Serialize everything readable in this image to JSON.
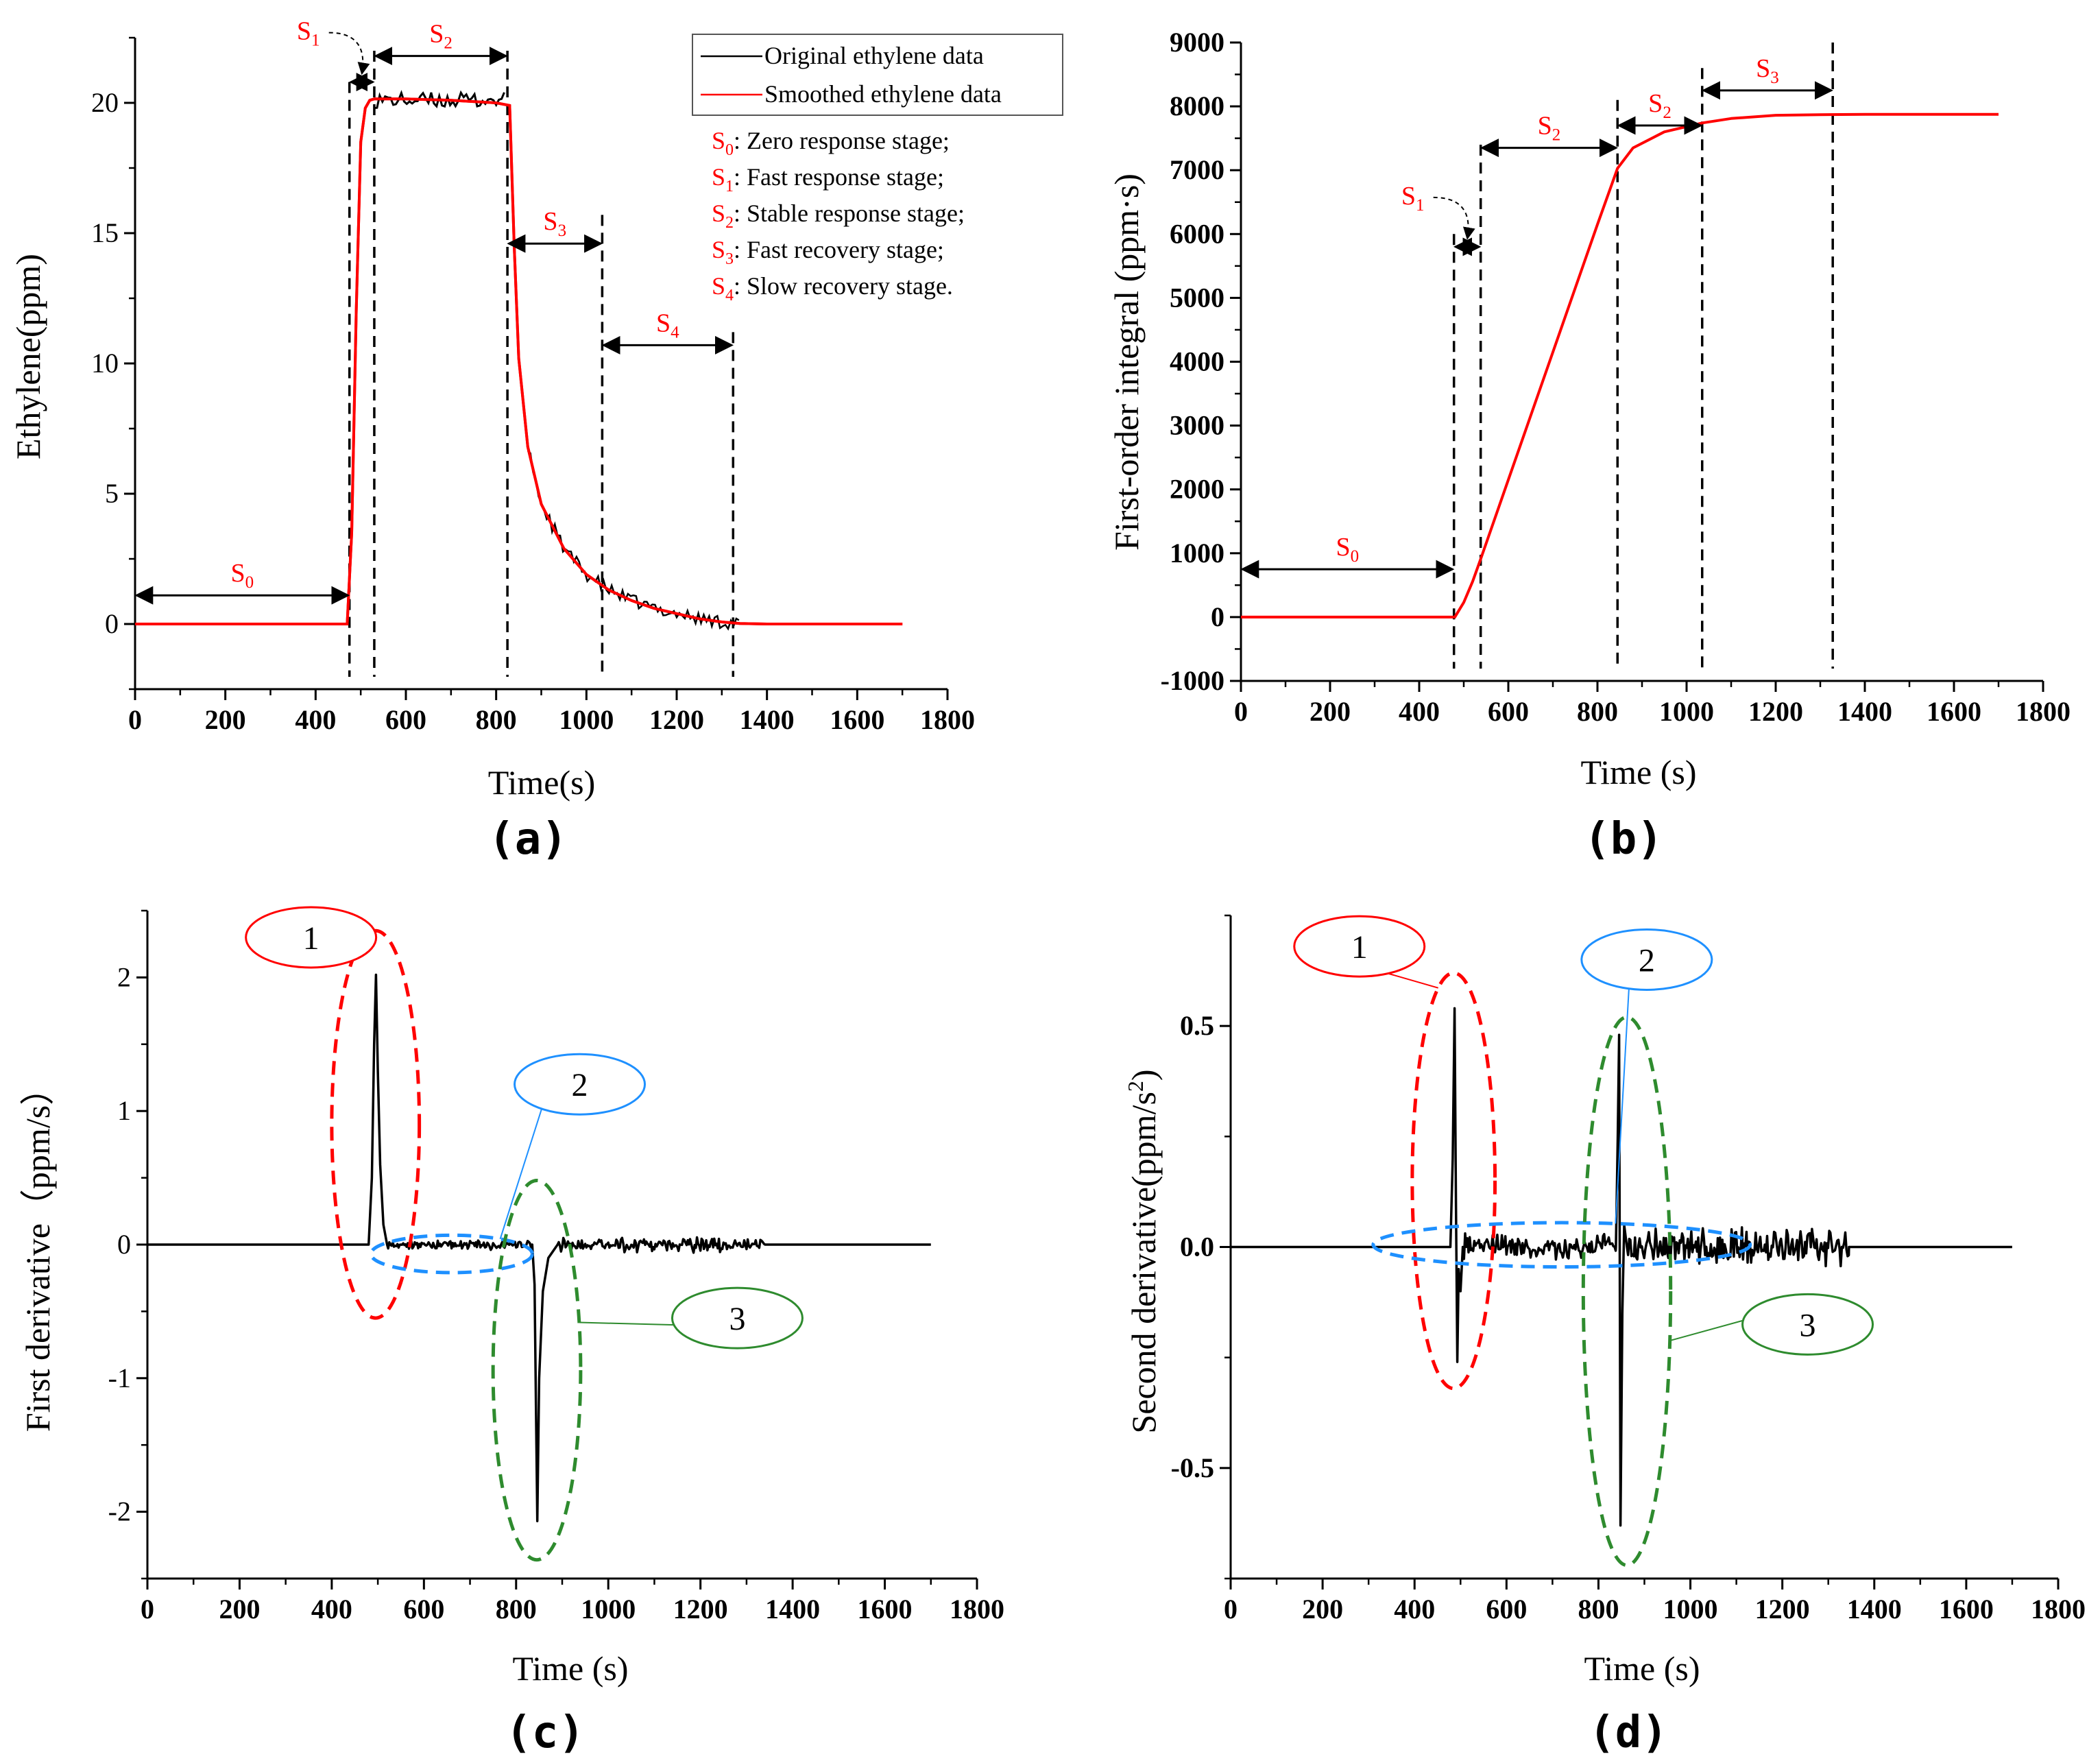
{
  "figure": {
    "colors": {
      "original": "#000000",
      "smoothed": "#ff0000",
      "ann_red": "#ff0000",
      "ann_blue": "#1e90ff",
      "ann_green": "#2e8b2e",
      "axis": "#000000"
    }
  },
  "chart_data": [
    {
      "type": "line",
      "panel_label": "(a)",
      "xlabel": "Time(s)",
      "ylabel": "Ethylene(ppm)",
      "xlim": [
        0,
        1800
      ],
      "ylim": [
        -2.5,
        22.5
      ],
      "xticks": [
        0,
        200,
        400,
        600,
        800,
        1000,
        1200,
        1400,
        1600,
        1800
      ],
      "yticks": [
        0,
        5,
        10,
        15,
        20
      ],
      "xtick_labels": [
        "0",
        "200",
        "400",
        "600",
        "800",
        "1000",
        "1200",
        "1400",
        "1600",
        "1800"
      ],
      "ytick_labels": [
        "0",
        "5",
        "10",
        "15",
        "20"
      ],
      "legend": {
        "placement": "top-right",
        "entries": [
          {
            "label": "Original ethylene data",
            "color": "#000000"
          },
          {
            "label": "Smoothed ethylene data",
            "color": "#ff0000"
          }
        ]
      },
      "stage_legend": [
        {
          "sym": "S",
          "sub": "0",
          "desc": ": Zero response stage;"
        },
        {
          "sym": "S",
          "sub": "1",
          "desc": ": Fast response stage;"
        },
        {
          "sym": "S",
          "sub": "2",
          "desc": ": Stable response stage;"
        },
        {
          "sym": "S",
          "sub": "3",
          "desc": ": Fast recovery stage;"
        },
        {
          "sym": "S",
          "sub": "4",
          "desc": ": Slow recovery stage."
        }
      ],
      "series": [
        {
          "name": "Smoothed ethylene data",
          "color": "#ff0000",
          "x": [
            0,
            470,
            480,
            490,
            500,
            510,
            520,
            530,
            600,
            700,
            800,
            830,
            840,
            850,
            870,
            900,
            950,
            1000,
            1050,
            1100,
            1150,
            1200,
            1250,
            1300,
            1340,
            1400,
            1500,
            1600,
            1700
          ],
          "y": [
            0,
            0,
            3.5,
            12,
            18.5,
            19.8,
            20.1,
            20.15,
            20.15,
            20.1,
            20.0,
            19.9,
            14.5,
            10.2,
            6.8,
            4.6,
            2.9,
            1.9,
            1.3,
            0.9,
            0.6,
            0.4,
            0.2,
            0.08,
            0.02,
            0,
            0,
            0,
            0
          ]
        }
      ],
      "stages": [
        {
          "label": "S",
          "sub": "0",
          "x1": 0,
          "x2": 475,
          "y": 1.1
        },
        {
          "label": "S",
          "sub": "1",
          "x1": 475,
          "x2": 530,
          "y": 20.8
        },
        {
          "label": "S",
          "sub": "2",
          "x1": 530,
          "x2": 825,
          "y": 21.8
        },
        {
          "label": "S",
          "sub": "3",
          "x1": 825,
          "x2": 1035,
          "y": 14.6
        },
        {
          "label": "S",
          "sub": "4",
          "x1": 1035,
          "x2": 1325,
          "y": 10.7
        }
      ],
      "boundaries": [
        {
          "x": 475,
          "y_top": 20.8
        },
        {
          "x": 530,
          "y_top": 22.0
        },
        {
          "x": 825,
          "y_top": 22.0
        },
        {
          "x": 1035,
          "y_top": 15.7
        },
        {
          "x": 1325,
          "y_top": 11.2
        }
      ]
    },
    {
      "type": "line",
      "panel_label": "(b)",
      "xlabel": "Time (s)",
      "ylabel": "First-order integral (ppm·s)",
      "xlim": [
        0,
        1800
      ],
      "ylim": [
        -1000,
        9000
      ],
      "xticks": [
        0,
        200,
        400,
        600,
        800,
        1000,
        1200,
        1400,
        1600,
        1800
      ],
      "yticks": [
        -1000,
        0,
        1000,
        2000,
        3000,
        4000,
        5000,
        6000,
        7000,
        8000,
        9000
      ],
      "xtick_labels": [
        "0",
        "200",
        "400",
        "600",
        "800",
        "1000",
        "1200",
        "1400",
        "1600",
        "1800"
      ],
      "ytick_labels": [
        "-1000",
        "0",
        "1000",
        "2000",
        "3000",
        "4000",
        "5000",
        "6000",
        "7000",
        "8000",
        "9000"
      ],
      "series": [
        {
          "name": "First-order integral",
          "color": "#ff0000",
          "x": [
            0,
            480,
            500,
            520,
            540,
            600,
            700,
            800,
            845,
            880,
            950,
            1035,
            1100,
            1200,
            1300,
            1400,
            1500,
            1600,
            1700
          ],
          "y": [
            0,
            0,
            230,
            560,
            950,
            2150,
            4150,
            6150,
            7030,
            7350,
            7600,
            7740,
            7810,
            7860,
            7870,
            7875,
            7875,
            7875,
            7875
          ]
        }
      ],
      "stages": [
        {
          "label": "S",
          "sub": "0",
          "x1": 0,
          "x2": 478,
          "y": 750
        },
        {
          "label": "S",
          "sub": "1",
          "x1": 478,
          "x2": 538,
          "y": 5800
        },
        {
          "label": "S",
          "sub": "2",
          "x1": 538,
          "x2": 845,
          "y": 7350
        },
        {
          "label": "S",
          "sub": "2",
          "x1": 845,
          "x2": 1035,
          "y": 7700
        },
        {
          "label": "S",
          "sub": "3",
          "x1": 1035,
          "x2": 1328,
          "y": 8250
        }
      ],
      "boundaries": [
        {
          "x": 478,
          "y_top": 6000
        },
        {
          "x": 538,
          "y_top": 7400
        },
        {
          "x": 845,
          "y_top": 8100
        },
        {
          "x": 1035,
          "y_top": 8600
        },
        {
          "x": 1328,
          "y_top": 9000
        }
      ]
    },
    {
      "type": "line",
      "panel_label": "(c)",
      "xlabel": "Time (s)",
      "ylabel": "First derivative（ppm/s）",
      "xlim": [
        0,
        1800
      ],
      "ylim": [
        -2.5,
        2.5
      ],
      "xticks": [
        0,
        200,
        400,
        600,
        800,
        1000,
        1200,
        1400,
        1600,
        1800
      ],
      "yticks": [
        -2,
        -1,
        0,
        1,
        2
      ],
      "xtick_labels": [
        "0",
        "200",
        "400",
        "600",
        "800",
        "1000",
        "1200",
        "1400",
        "1600",
        "1800"
      ],
      "ytick_labels": [
        "-2",
        "-1",
        "0",
        "1",
        "2"
      ],
      "series": [
        {
          "name": "First derivative",
          "color": "#000000",
          "x": [
            0,
            480,
            487,
            492,
            496,
            500,
            505,
            512,
            520,
            835,
            840,
            843,
            846,
            850,
            858,
            870,
            890,
            1340,
            1700
          ],
          "y": [
            0,
            0,
            0.5,
            1.5,
            2.02,
            1.3,
            0.6,
            0.15,
            0,
            0,
            -0.3,
            -1.2,
            -2.07,
            -1.0,
            -0.35,
            -0.1,
            0,
            0,
            0
          ],
          "noise": [
            [
              520,
              835,
              0.03
            ],
            [
              890,
              1340,
              0.045
            ]
          ]
        }
      ],
      "annotations": [
        {
          "id": "1",
          "color": "#ff0000",
          "ellipse": {
            "cx": 495,
            "cy": 0.9,
            "rx": 95,
            "ry": 1.45
          },
          "label_at": [
            355,
            2.3
          ]
        },
        {
          "id": "2",
          "color": "#1e90ff",
          "ellipse": {
            "cx": 660,
            "cy": -0.07,
            "rx": 175,
            "ry": 0.14
          },
          "label_at": [
            938,
            1.2
          ]
        },
        {
          "id": "3",
          "color": "#2e8b2e",
          "ellipse": {
            "cx": 845,
            "cy": -0.94,
            "rx": 95,
            "ry": 1.42
          },
          "label_at": [
            1280,
            -0.55
          ]
        }
      ]
    },
    {
      "type": "line",
      "panel_label": "(d)",
      "xlabel": "Time (s)",
      "ylabel": "Second derivative(ppm/s2)",
      "xlim": [
        0,
        1800
      ],
      "ylim": [
        -0.75,
        0.75
      ],
      "xticks": [
        0,
        200,
        400,
        600,
        800,
        1000,
        1200,
        1400,
        1600,
        1800
      ],
      "yticks": [
        -0.5,
        0.0,
        0.5
      ],
      "xtick_labels": [
        "0",
        "200",
        "400",
        "600",
        "800",
        "1000",
        "1200",
        "1400",
        "1600",
        "1800"
      ],
      "ytick_labels": [
        "-0.5",
        "0.0",
        "0.5"
      ],
      "series": [
        {
          "name": "Second derivative",
          "color": "#000000",
          "x": [
            0,
            478,
            483,
            487,
            490,
            493,
            496,
            500,
            505,
            838,
            842,
            845,
            848,
            852,
            856,
            862,
            1345,
            1700
          ],
          "y": [
            0,
            0,
            0.2,
            0.54,
            0.1,
            -0.26,
            -0.05,
            -0.1,
            0,
            0,
            0.25,
            0.48,
            -0.63,
            -0.15,
            0.05,
            0,
            0,
            0
          ],
          "noise": [
            [
              505,
              838,
              0.025
            ],
            [
              862,
              1345,
              0.035
            ]
          ]
        }
      ],
      "annotations": [
        {
          "id": "1",
          "color": "#ff0000",
          "ellipse": {
            "cx": 485,
            "cy": 0.15,
            "rx": 90,
            "ry": 0.47
          },
          "label_at": [
            280,
            0.68
          ]
        },
        {
          "id": "2",
          "color": "#1e90ff",
          "ellipse": {
            "cx": 720,
            "cy": 0.005,
            "rx": 410,
            "ry": 0.05
          },
          "label_at": [
            905,
            0.65
          ]
        },
        {
          "id": "3",
          "color": "#2e8b2e",
          "ellipse": {
            "cx": 862,
            "cy": -0.1,
            "rx": 95,
            "ry": 0.62
          },
          "label_at": [
            1255,
            -0.175
          ]
        }
      ]
    }
  ]
}
